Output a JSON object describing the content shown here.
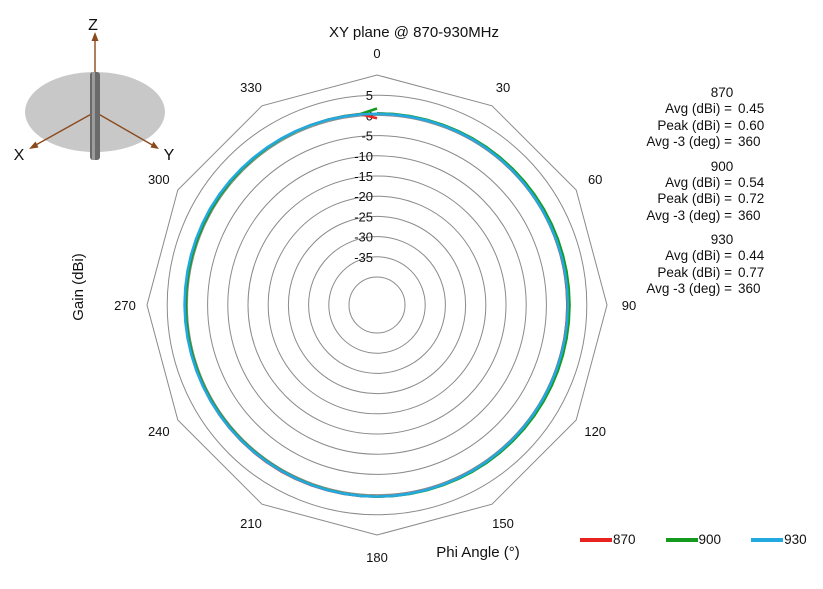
{
  "chart_data": {
    "type": "polar-line",
    "title": "XY plane @ 870-930MHz",
    "xlabel": "Phi  Angle (°)",
    "ylabel": "Gain  (dBi)",
    "r_range": [
      -40,
      10
    ],
    "radial_ticks": [
      "5",
      "0",
      "-5",
      "-10",
      "-15",
      "-20",
      "-25",
      "-30",
      "-35"
    ],
    "radial_tick_values": [
      5,
      0,
      -5,
      -10,
      -15,
      -20,
      -25,
      -30,
      -35
    ],
    "angle_ticks": [
      "0",
      "30",
      "60",
      "90",
      "120",
      "150",
      "180",
      "210",
      "240",
      "270",
      "300",
      "330"
    ],
    "angle_tick_values": [
      0,
      30,
      60,
      90,
      120,
      150,
      180,
      210,
      240,
      270,
      300,
      330
    ],
    "angle_zero": "top",
    "angle_direction": "clockwise",
    "grid": true,
    "legend_position": "bottom-right",
    "series": [
      {
        "name": "870",
        "color": "#e8221f",
        "angles": [
          0,
          30,
          60,
          90,
          120,
          150,
          180,
          210,
          240,
          270,
          300,
          330
        ],
        "values": [
          0.5,
          0.4,
          0.3,
          0.2,
          0.3,
          0.4,
          0.5,
          0.6,
          0.6,
          0.6,
          0.6,
          0.55
        ]
      },
      {
        "name": "900",
        "color": "#139a1f",
        "angles": [
          0,
          30,
          60,
          90,
          120,
          150,
          180,
          210,
          240,
          270,
          300,
          330
        ],
        "values": [
          0.5,
          0.6,
          0.7,
          0.72,
          0.7,
          0.6,
          0.5,
          0.4,
          0.4,
          0.4,
          0.45,
          0.5
        ]
      },
      {
        "name": "930",
        "color": "#22a9e0",
        "angles": [
          0,
          30,
          60,
          90,
          120,
          150,
          180,
          210,
          240,
          270,
          300,
          330
        ],
        "values": [
          0.4,
          0.4,
          0.3,
          0.3,
          0.3,
          0.4,
          0.5,
          0.5,
          0.6,
          0.7,
          0.77,
          0.6
        ]
      }
    ]
  },
  "stats": [
    {
      "freq": "870",
      "rows": [
        {
          "label": "Avg (dBi) =",
          "value": "0.45"
        },
        {
          "label": "Peak (dBi) =",
          "value": "0.60"
        },
        {
          "label": "Avg -3 (deg) =",
          "value": "360"
        }
      ]
    },
    {
      "freq": "900",
      "rows": [
        {
          "label": "Avg (dBi) =",
          "value": "0.54"
        },
        {
          "label": "Peak (dBi) =",
          "value": "0.72"
        },
        {
          "label": "Avg -3 (deg) =",
          "value": "360"
        }
      ]
    },
    {
      "freq": "930",
      "rows": [
        {
          "label": "Avg (dBi) =",
          "value": "0.44"
        },
        {
          "label": "Peak (dBi) =",
          "value": "0.77"
        },
        {
          "label": "Avg -3 (deg) =",
          "value": "360"
        }
      ]
    }
  ],
  "axes_icon": {
    "x_label": "X",
    "y_label": "Y",
    "z_label": "Z",
    "icon": "antenna-orientation-icon"
  },
  "colors": {
    "grid": "#8a8a8a",
    "axis_arrow": "#8b4a1b",
    "plane": "#c8c8c8"
  }
}
